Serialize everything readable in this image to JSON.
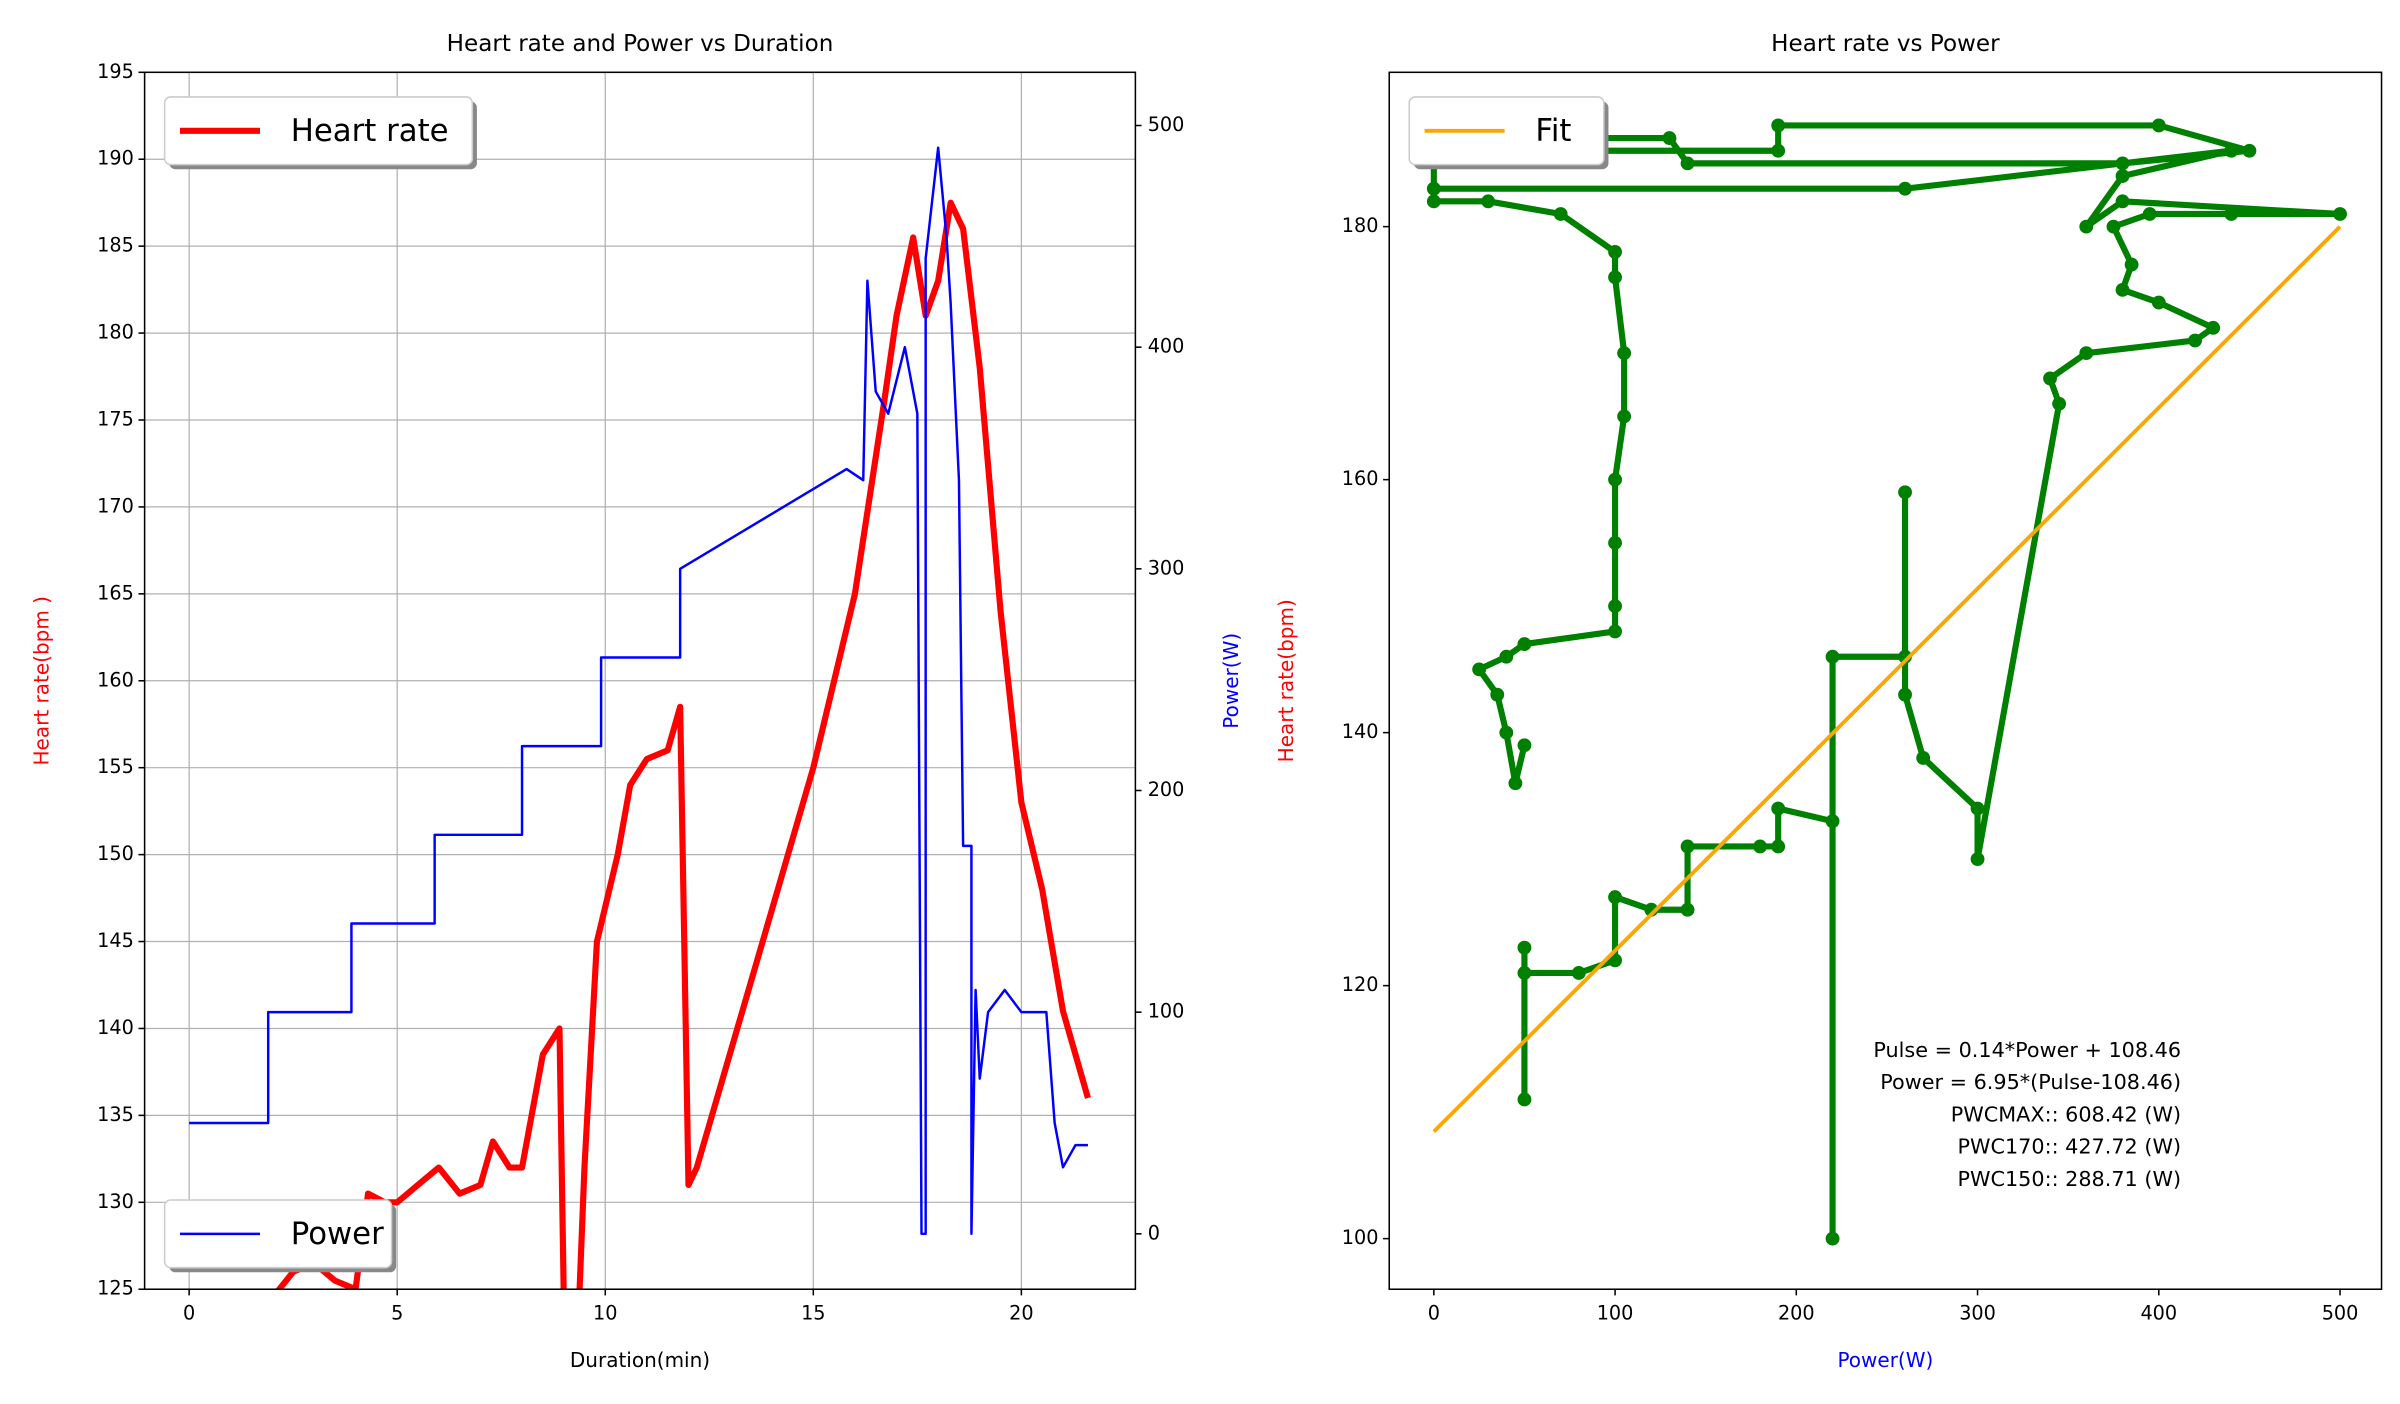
{
  "chart_data": [
    {
      "type": "line",
      "title": "Heart rate and Power vs Duration",
      "x_label": "Duration(min)",
      "y_label": "Heart rate(bpm )",
      "y2_label": "Power(W)",
      "y_label_color": "red",
      "y2_label_color": "blue",
      "grid": true,
      "xlim": [
        -1.07,
        22.74
      ],
      "xticks": [
        0,
        5,
        10,
        15,
        20
      ],
      "ylim": [
        125,
        195
      ],
      "yticks": [
        125,
        130,
        135,
        140,
        145,
        150,
        155,
        160,
        165,
        170,
        175,
        180,
        185,
        190,
        195
      ],
      "y2lim": [
        -25,
        524
      ],
      "y2ticks": [
        0,
        100,
        200,
        300,
        400,
        500
      ],
      "series": [
        {
          "name": "Heart rate",
          "color": "red",
          "width": 4,
          "legend": "upper left",
          "x": [
            1.6,
            2,
            2.5,
            3,
            3.5,
            4,
            4.3,
            4.7,
            5,
            5.5,
            6,
            6.5,
            7,
            7.3,
            7.7,
            8,
            8.5,
            8.9,
            9.0,
            9.3,
            9.5,
            9.8,
            10.3,
            10.6,
            11,
            11.5,
            11.8,
            12,
            12.2,
            15,
            16,
            16.7,
            17,
            17.4,
            17.7,
            18,
            18.3,
            18.6,
            19,
            19.5,
            20,
            20.5,
            21,
            21.6
          ],
          "values": [
            123,
            124.5,
            126,
            126.5,
            125.5,
            125,
            130.5,
            130,
            130,
            131,
            132,
            130.5,
            131,
            133.5,
            132,
            132,
            138.5,
            140,
            125,
            120,
            132,
            145,
            150,
            154,
            155.5,
            156,
            158.5,
            131,
            132,
            155,
            165,
            176,
            181,
            185.5,
            181,
            183,
            187.5,
            186,
            178,
            164,
            153,
            148,
            141,
            136
          ]
        },
        {
          "name": "Power",
          "color": "blue",
          "width": 1.6,
          "axis": "y2",
          "legend": "lower left",
          "x": [
            0,
            1.9,
            1.9,
            3.9,
            3.9,
            5.9,
            5.9,
            8,
            8,
            9.9,
            9.9,
            11.8,
            11.8,
            15.8,
            16.2,
            16.3,
            16.5,
            16.8,
            17.2,
            17.5,
            17.6,
            17.7,
            17.7,
            18,
            18.2,
            18.3,
            18.5,
            18.6,
            18.8,
            18.8,
            18.9,
            19,
            19.2,
            19.6,
            20,
            20.6,
            20.8,
            21,
            21.3,
            21.6
          ],
          "values": [
            50,
            50,
            100,
            100,
            140,
            140,
            180,
            180,
            220,
            220,
            260,
            260,
            300,
            345,
            340,
            430,
            380,
            370,
            400,
            370,
            0,
            0,
            440,
            490,
            450,
            420,
            340,
            175,
            175,
            0,
            110,
            70,
            100,
            110,
            100,
            100,
            50,
            30,
            40,
            40
          ]
        }
      ]
    },
    {
      "type": "scatter",
      "title": "Heart rate vs Power",
      "x_label": "Power(W)",
      "y_label": "Heart rate(bpm)",
      "x_label_color": "blue",
      "y_label_color": "red",
      "grid": false,
      "xlim": [
        -24.6,
        522.9
      ],
      "xticks": [
        0,
        100,
        200,
        300,
        400,
        500
      ],
      "ylim": [
        96,
        192.2
      ],
      "yticks": [
        100,
        120,
        140,
        160,
        180
      ],
      "series": [
        {
          "color": "green",
          "width": 4,
          "marker": true,
          "x": [
            50,
            50,
            50,
            80,
            100,
            100,
            120,
            140,
            140,
            180,
            190,
            190,
            220,
            220,
            220,
            260,
            260,
            260,
            270,
            300,
            300,
            345,
            340,
            360,
            420,
            430,
            400,
            380,
            385,
            375,
            395,
            440,
            500,
            380,
            360,
            380,
            440,
            260,
            0,
            0,
            130,
            140,
            380,
            450,
            400,
            190,
            190,
            0,
            0,
            30,
            70,
            100,
            100,
            105,
            105,
            100,
            100,
            100,
            100,
            50,
            40,
            25,
            35,
            40,
            45,
            50
          ],
          "values": [
            111,
            123,
            121,
            121,
            122,
            127,
            126,
            126,
            131,
            131,
            131,
            134,
            133,
            100,
            146,
            146,
            159,
            143,
            138,
            134,
            130,
            166,
            168,
            170,
            171,
            172,
            174,
            175,
            177,
            180,
            181,
            181,
            181,
            182,
            180,
            184,
            186,
            183,
            183,
            187,
            187,
            185,
            185,
            186,
            188,
            188,
            186,
            186,
            182,
            182,
            181,
            178,
            176,
            170,
            165,
            160,
            155,
            150,
            148,
            147,
            146,
            145,
            143,
            140,
            136,
            139
          ]
        },
        {
          "name": "Fit",
          "color": "orange",
          "width": 2.5,
          "legend": "upper left",
          "x": [
            0,
            500
          ],
          "values": [
            108.46,
            180
          ]
        }
      ],
      "annotations": [
        "Pulse = 0.14*Power + 108.46",
        "Power = 6.95*(Pulse-108.46)",
        "PWCMAX:: 608.42 (W)",
        "PWC170:: 427.72 (W)",
        "PWC150:: 288.71 (W)"
      ]
    }
  ]
}
